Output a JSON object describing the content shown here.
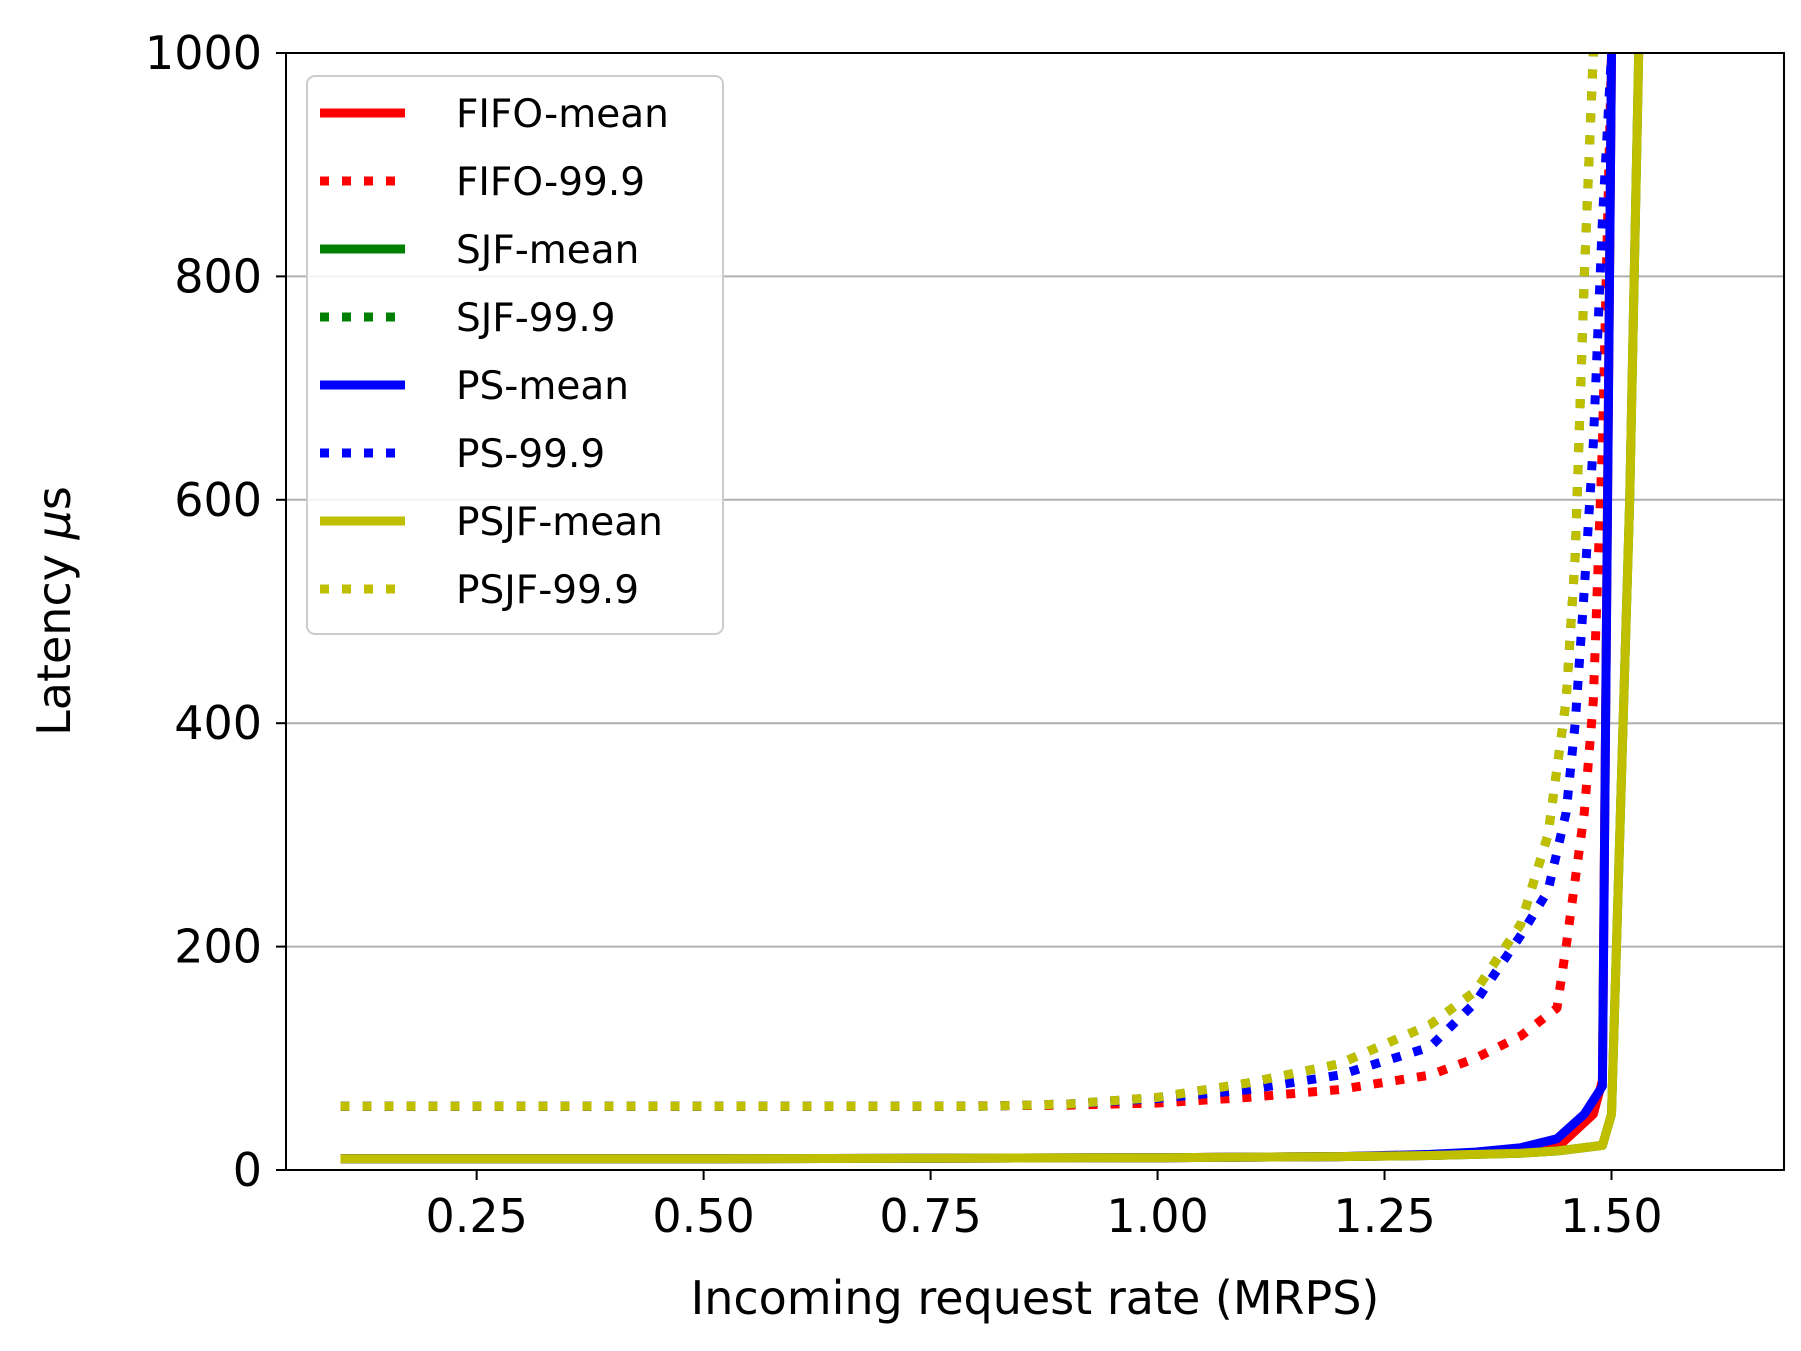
{
  "chart_data": {
    "type": "line",
    "title": "",
    "xlabel": "Incoming request rate (MRPS)",
    "ylabel_prefix": "Latency ",
    "ylabel_mu": "μ",
    "ylabel_suffix": "s",
    "xlim": [
      0.04,
      1.69
    ],
    "ylim": [
      0,
      1000
    ],
    "xticks": [
      0.25,
      0.5,
      0.75,
      1.0,
      1.25,
      1.5
    ],
    "xtick_labels": [
      "0.25",
      "0.50",
      "0.75",
      "1.00",
      "1.25",
      "1.50"
    ],
    "yticks": [
      0,
      200,
      400,
      600,
      800,
      1000
    ],
    "ytick_labels": [
      "0",
      "200",
      "400",
      "600",
      "800",
      "1000"
    ],
    "grid": "horizontal",
    "legend_position": "top-left",
    "series": [
      {
        "name": "FIFO-mean",
        "color": "#ff0000",
        "style": "solid",
        "x": [
          0.1,
          0.5,
          1.0,
          1.2,
          1.3,
          1.4,
          1.44,
          1.48,
          1.49,
          1.5
        ],
        "y": [
          10,
          10,
          11,
          12,
          13,
          16,
          20,
          50,
          80,
          1000
        ]
      },
      {
        "name": "FIFO-99.9",
        "color": "#ff0000",
        "style": "dotted",
        "x": [
          0.1,
          0.5,
          0.75,
          0.9,
          1.0,
          1.1,
          1.2,
          1.3,
          1.35,
          1.4,
          1.44,
          1.45,
          1.47,
          1.48,
          1.49,
          1.5
        ],
        "y": [
          57,
          57,
          57,
          58,
          60,
          65,
          72,
          85,
          100,
          120,
          145,
          200,
          320,
          420,
          650,
          1000
        ]
      },
      {
        "name": "SJF-mean",
        "color": "#008000",
        "style": "solid",
        "x": [
          0.1,
          0.5,
          1.0,
          1.2,
          1.3,
          1.4,
          1.44,
          1.49,
          1.5,
          1.52,
          1.53
        ],
        "y": [
          10,
          10,
          11,
          12,
          13,
          15,
          17,
          22,
          50,
          600,
          1000
        ]
      },
      {
        "name": "SJF-99.9",
        "color": "#008000",
        "style": "dotted",
        "x": [
          0.1,
          0.5,
          0.8,
          0.9,
          1.0,
          1.1,
          1.2,
          1.3,
          1.35,
          1.4,
          1.43,
          1.45,
          1.46,
          1.47,
          1.48
        ],
        "y": [
          57,
          57,
          57,
          59,
          65,
          78,
          95,
          130,
          160,
          220,
          300,
          420,
          550,
          800,
          1000
        ]
      },
      {
        "name": "PS-mean",
        "color": "#0000ff",
        "style": "solid",
        "x": [
          0.1,
          0.5,
          1.0,
          1.2,
          1.3,
          1.35,
          1.4,
          1.44,
          1.47,
          1.49,
          1.5
        ],
        "y": [
          10,
          10,
          11,
          12,
          14,
          16,
          20,
          28,
          50,
          75,
          1000
        ]
      },
      {
        "name": "PS-99.9",
        "color": "#0000ff",
        "style": "dotted",
        "x": [
          0.1,
          0.5,
          0.8,
          0.9,
          1.0,
          1.1,
          1.2,
          1.3,
          1.35,
          1.4,
          1.43,
          1.45,
          1.46,
          1.47,
          1.48,
          1.49,
          1.5
        ],
        "y": [
          57,
          57,
          57,
          59,
          64,
          72,
          85,
          110,
          150,
          210,
          250,
          320,
          400,
          520,
          650,
          850,
          1000
        ]
      },
      {
        "name": "PSJF-mean",
        "color": "#bfbf00",
        "style": "solid",
        "x": [
          0.1,
          0.5,
          1.0,
          1.2,
          1.3,
          1.4,
          1.44,
          1.49,
          1.5,
          1.52,
          1.53
        ],
        "y": [
          10,
          10,
          11,
          12,
          13,
          15,
          17,
          22,
          50,
          600,
          1000
        ]
      },
      {
        "name": "PSJF-99.9",
        "color": "#bfbf00",
        "style": "dotted",
        "x": [
          0.1,
          0.5,
          0.8,
          0.9,
          1.0,
          1.1,
          1.2,
          1.3,
          1.35,
          1.4,
          1.43,
          1.45,
          1.46,
          1.47,
          1.48
        ],
        "y": [
          57,
          57,
          57,
          59,
          65,
          78,
          95,
          130,
          160,
          220,
          300,
          420,
          550,
          800,
          1000
        ]
      }
    ]
  }
}
